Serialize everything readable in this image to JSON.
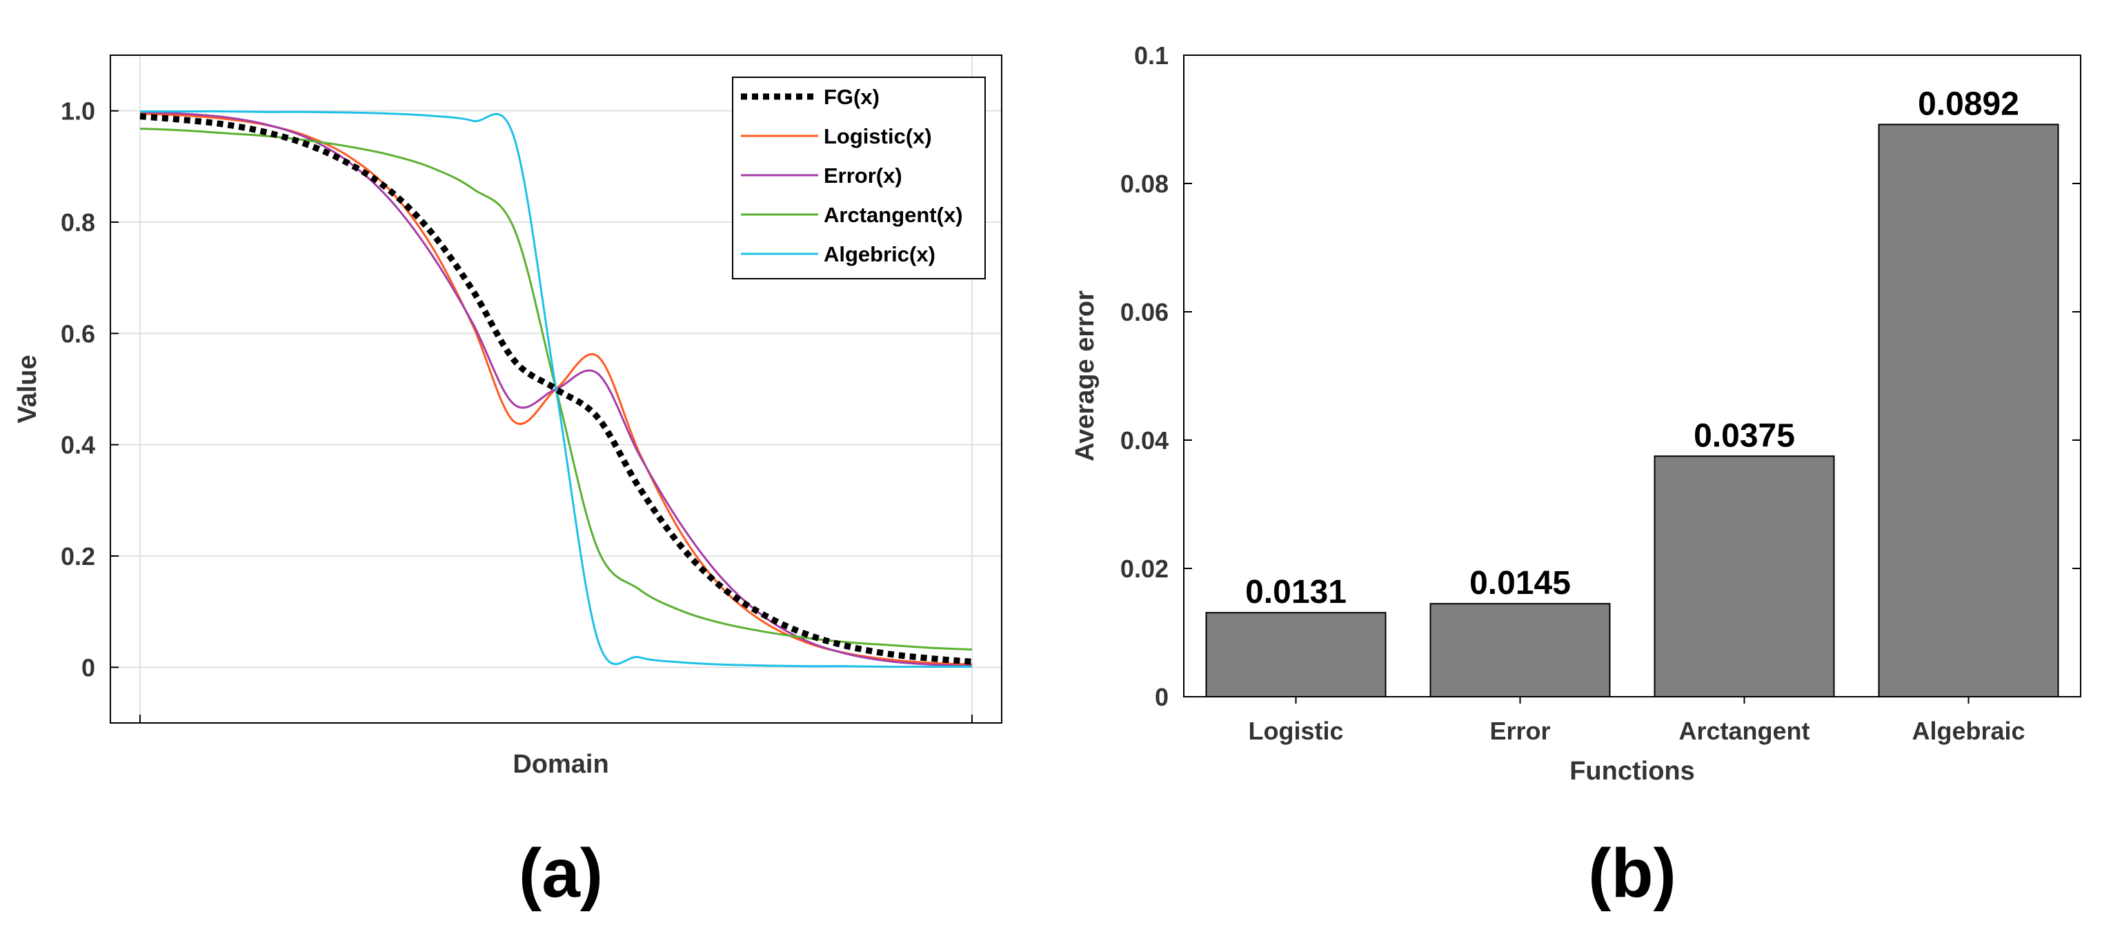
{
  "colors": {
    "fg": "#000000",
    "logistic": "#ff5a1f",
    "error": "#a43ea8",
    "arctangent": "#5cb031",
    "algebraic": "#1ec0e8",
    "bar_fill": "#808080",
    "bar_stroke": "#000000",
    "grid": "#d9d9d9",
    "axis": "#000000"
  },
  "panel_labels": {
    "a": "(a)",
    "b": "(b)"
  },
  "chart_data": [
    {
      "type": "line",
      "title": "",
      "xlabel": "Domain",
      "ylabel": "Value",
      "xlim": [
        -5,
        5
      ],
      "ylim": [
        -0.1,
        1.1
      ],
      "yticks": [
        0,
        0.2,
        0.4,
        0.6,
        0.8,
        1.0
      ],
      "ytick_labels": [
        "0",
        "0.2",
        "0.4",
        "0.6",
        "0.8",
        "1.0"
      ],
      "xtick_labels": [],
      "grid": true,
      "legend_position": "top-right",
      "x": [
        -5,
        -4.5,
        -4,
        -3.5,
        -3,
        -2.5,
        -2,
        -1.5,
        -1,
        -0.5,
        0,
        0.5,
        1,
        1.5,
        2,
        2.5,
        3,
        3.5,
        4,
        4.5,
        5
      ],
      "series": [
        {
          "name": "FG(x)",
          "color_key": "fg",
          "style": "dotted",
          "values": [
            0.99,
            0.984,
            0.976,
            0.962,
            0.94,
            0.906,
            0.857,
            0.782,
            0.677,
            0.551,
            0.5,
            0.449,
            0.323,
            0.218,
            0.143,
            0.094,
            0.06,
            0.038,
            0.024,
            0.016,
            0.01
          ]
        },
        {
          "name": "Logistic(x)",
          "color_key": "logistic",
          "style": "solid",
          "values": [
            0.995,
            0.992,
            0.986,
            0.975,
            0.955,
            0.919,
            0.858,
            0.758,
            0.614,
            0.441,
            0.5,
            0.559,
            0.386,
            0.242,
            0.142,
            0.081,
            0.045,
            0.025,
            0.014,
            0.008,
            0.005
          ]
        },
        {
          "name": "Error(x)",
          "color_key": "error",
          "style": "solid",
          "values": [
            0.998,
            0.995,
            0.989,
            0.976,
            0.952,
            0.909,
            0.841,
            0.743,
            0.618,
            0.472,
            0.5,
            0.528,
            0.382,
            0.257,
            0.159,
            0.091,
            0.048,
            0.024,
            0.011,
            0.005,
            0.002
          ]
        },
        {
          "name": "Arctangent(x)",
          "color_key": "arctangent",
          "style": "solid",
          "values": [
            0.968,
            0.965,
            0.96,
            0.955,
            0.947,
            0.936,
            0.921,
            0.898,
            0.86,
            0.787,
            0.5,
            0.213,
            0.14,
            0.102,
            0.079,
            0.064,
            0.053,
            0.045,
            0.04,
            0.035,
            0.032
          ]
        },
        {
          "name": "Algebric(x)",
          "color_key": "algebraic",
          "style": "solid",
          "values": [
            0.999,
            0.999,
            0.999,
            0.998,
            0.998,
            0.997,
            0.995,
            0.991,
            0.982,
            0.95,
            0.5,
            0.05,
            0.018,
            0.009,
            0.005,
            0.003,
            0.002,
            0.002,
            0.001,
            0.001,
            0.001
          ]
        }
      ]
    },
    {
      "type": "bar",
      "title": "",
      "xlabel": "Functions",
      "ylabel": "Average error",
      "ylim": [
        0,
        0.1
      ],
      "yticks": [
        0,
        0.02,
        0.04,
        0.06,
        0.08,
        0.1
      ],
      "ytick_labels": [
        "0",
        "0.02",
        "0.04",
        "0.06",
        "0.08",
        "0.1"
      ],
      "grid": false,
      "categories": [
        "Logistic",
        "Error",
        "Arctangent",
        "Algebraic"
      ],
      "values": [
        0.0131,
        0.0145,
        0.0375,
        0.0892
      ],
      "data_labels": [
        "0.0131",
        "0.0145",
        "0.0375",
        "0.0892"
      ]
    }
  ]
}
